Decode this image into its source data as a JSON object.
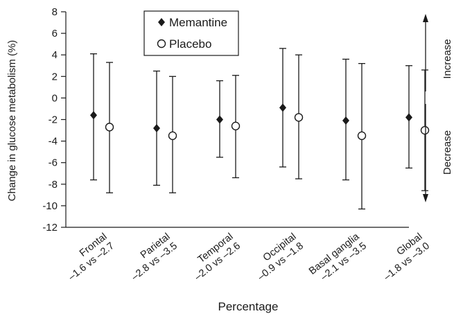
{
  "chart_data": {
    "type": "scatter",
    "ylabel": "Change in glucose metabolism (%)",
    "xlabel": "Percentage",
    "ylim": [
      -12,
      8
    ],
    "yticks": [
      -12,
      -10,
      -8,
      -6,
      -4,
      -2,
      0,
      2,
      4,
      6,
      8
    ],
    "grid": false,
    "legend_position": "top-center",
    "categories": [
      {
        "line1": "Frontal",
        "line2": "–1.6 vs –2.7"
      },
      {
        "line1": "Parietal",
        "line2": "–2.8 vs –3.5"
      },
      {
        "line1": "Temporal",
        "line2": "–2.0 vs –2.6"
      },
      {
        "line1": "Occipital",
        "line2": "–0.9 vs –1.8"
      },
      {
        "line1": "Basal ganglia",
        "line2": "–2.1 vs –3.5"
      },
      {
        "line1": "Global",
        "line2": "–1.8 vs –3.0"
      }
    ],
    "series": [
      {
        "name": "Memantine",
        "marker": "filled-diamond",
        "values": [
          -1.6,
          -2.8,
          -2.0,
          -0.9,
          -2.1,
          -1.8
        ],
        "lower": [
          -7.6,
          -8.1,
          -5.5,
          -6.4,
          -7.6,
          -6.5
        ],
        "upper": [
          4.1,
          2.5,
          1.6,
          4.6,
          3.6,
          3.0
        ]
      },
      {
        "name": "Placebo",
        "marker": "open-circle",
        "values": [
          -2.7,
          -3.5,
          -2.6,
          -1.8,
          -3.5,
          -3.0
        ],
        "lower": [
          -8.8,
          -8.8,
          -7.4,
          -7.5,
          -10.3,
          -8.6
        ],
        "upper": [
          3.3,
          2.0,
          2.1,
          4.0,
          3.2,
          2.6
        ]
      }
    ],
    "side_labels": {
      "increase": "Increase",
      "decrease": "Decrease"
    }
  }
}
